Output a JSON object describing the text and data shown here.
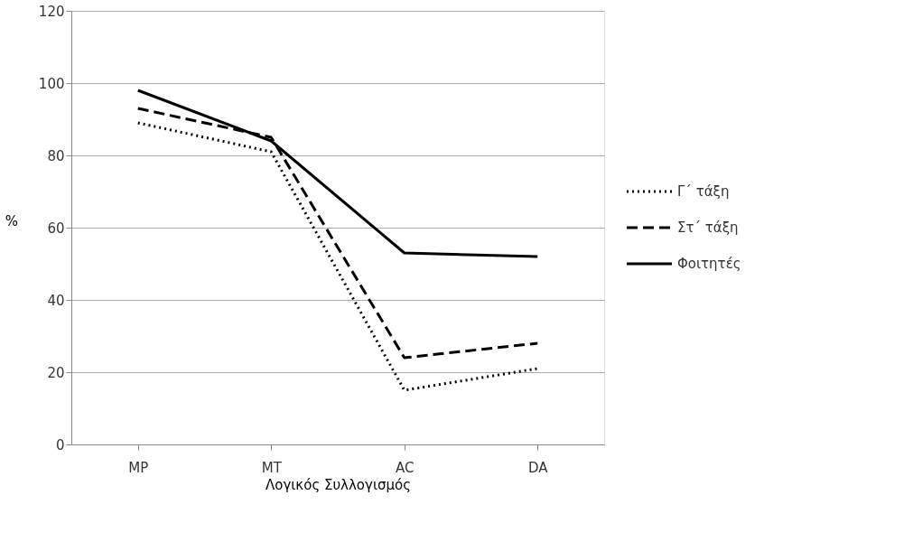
{
  "chart_data": {
    "type": "line",
    "xlabel": "Λογικός Συλλογισμός",
    "ylabel": "%",
    "categories": [
      "MP",
      "MT",
      "AC",
      "DA"
    ],
    "series": [
      {
        "name": "Γ΄ τάξη",
        "color": "#000000",
        "line_style": "dotted",
        "values": [
          89,
          81,
          15,
          21
        ]
      },
      {
        "name": "Στ΄ τάξη",
        "color": "#000000",
        "line_style": "dashed",
        "values": [
          93,
          85,
          24,
          28
        ]
      },
      {
        "name": "Φοιτητές",
        "color": "#000000",
        "line_style": "solid",
        "values": [
          98,
          84,
          53,
          52
        ]
      }
    ],
    "ylim": [
      0,
      120
    ],
    "yticks": [
      0,
      20,
      40,
      60,
      80,
      100,
      120
    ],
    "grid": "y",
    "legend": "right",
    "marker": "none"
  }
}
